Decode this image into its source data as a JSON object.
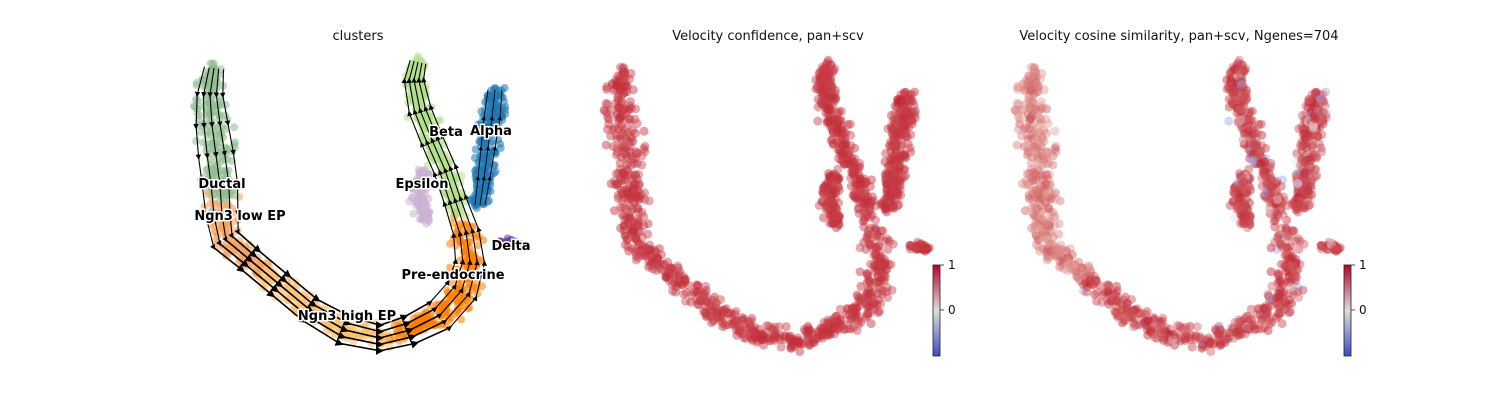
{
  "chart_data": [
    {
      "type": "scatter",
      "title": "clusters",
      "streamlines": true,
      "clusters": [
        {
          "name": "Ductal",
          "color": "#8fbc8f"
        },
        {
          "name": "Ngn3 low EP",
          "color": "#f4a261"
        },
        {
          "name": "Ngn3 high EP",
          "color": "#fdbf6f"
        },
        {
          "name": "Pre-endocrine",
          "color": "#ff7f00"
        },
        {
          "name": "Beta",
          "color": "#b2df8a"
        },
        {
          "name": "Alpha",
          "color": "#1f78b4"
        },
        {
          "name": "Epsilon",
          "color": "#cab2d6"
        },
        {
          "name": "Delta",
          "color": "#6a3d9a"
        }
      ]
    },
    {
      "type": "scatter",
      "title": "Velocity confidence, pan+scv",
      "colorbar": {
        "ticks": [
          "1",
          "0"
        ],
        "colormap": "coolwarm"
      }
    },
    {
      "type": "scatter",
      "title": "Velocity cosine similarity, pan+scv, Ngenes=704",
      "colorbar": {
        "ticks": [
          "1",
          "0"
        ],
        "colormap": "coolwarm"
      }
    }
  ]
}
